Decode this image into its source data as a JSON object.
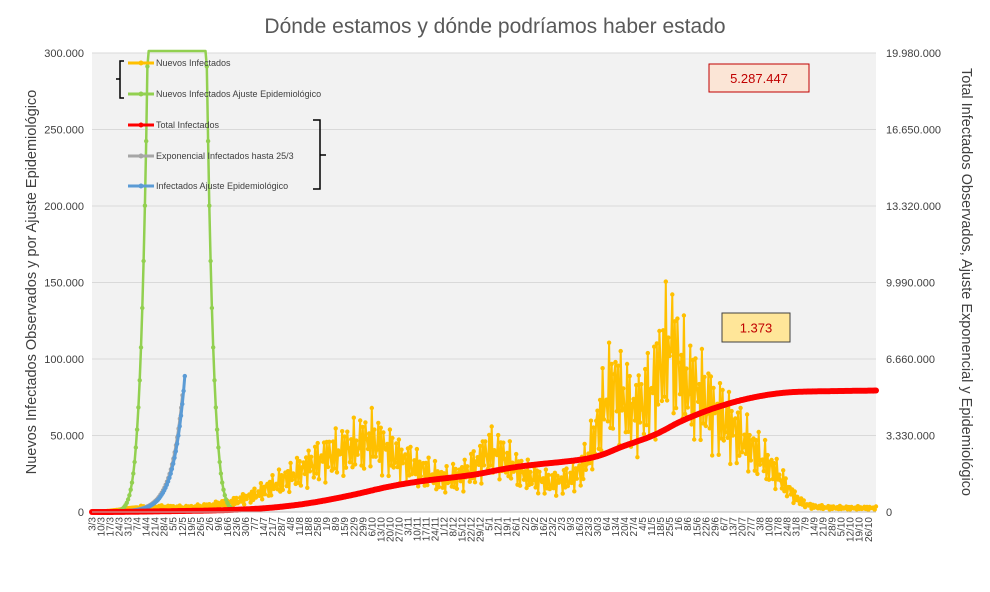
{
  "chart_data": {
    "type": "line",
    "title": "Dónde estamos y dónde podríamos haber estado",
    "ylabel": "Nuevos Infectados Observados y por Ajuste Epidemiológico",
    "y2label": "Total Infectados Observados, Ajuste Exponencial y Epidemiológico",
    "ylim": [
      0,
      300000
    ],
    "y2lim": [
      0,
      19980000
    ],
    "yticks": [
      "0",
      "50.000",
      "100.000",
      "150.000",
      "200.000",
      "250.000",
      "300.000"
    ],
    "y2ticks": [
      "0",
      "3.330.000",
      "6.660.000",
      "9.990.000",
      "13.320.000",
      "16.650.000",
      "19.980.000"
    ],
    "grid": true,
    "legend_position": "top-left",
    "x_dates": [
      "3/3",
      "10/3",
      "17/3",
      "24/3",
      "31/3",
      "7/4",
      "14/4",
      "21/4",
      "28/4",
      "5/5",
      "12/5",
      "19/5",
      "26/5",
      "2/6",
      "9/6",
      "16/6",
      "23/6",
      "30/6",
      "7/7",
      "14/7",
      "21/7",
      "28/7",
      "4/8",
      "11/8",
      "18/8",
      "25/8",
      "1/9",
      "8/9",
      "15/9",
      "22/9",
      "29/9",
      "6/10",
      "13/10",
      "20/10",
      "27/10",
      "3/11",
      "10/11",
      "17/11",
      "24/11",
      "1/12",
      "8/12",
      "15/12",
      "22/12",
      "29/12",
      "5/1",
      "12/1",
      "19/1",
      "26/1",
      "2/2",
      "9/2",
      "16/2",
      "23/2",
      "2/3",
      "9/3",
      "16/3",
      "23/3",
      "30/3",
      "6/4",
      "13/4",
      "20/4",
      "27/4",
      "4/5",
      "11/5",
      "18/5",
      "25/5",
      "1/6",
      "8/6",
      "15/6",
      "22/6",
      "29/6",
      "6/7",
      "13/7",
      "20/7",
      "27/7",
      "3/8",
      "10/8",
      "17/8",
      "24/8",
      "31/8",
      "7/9",
      "14/9",
      "21/9",
      "28/9",
      "5/10",
      "12/10",
      "19/10",
      "26/10"
    ],
    "series": [
      {
        "name": "Nuevos Infectados",
        "color": "#ffc000",
        "axis": "left",
        "weekly_values": [
          0,
          200,
          800,
          1500,
          2500,
          3000,
          2800,
          3000,
          3200,
          3000,
          2800,
          3000,
          3500,
          4000,
          5000,
          6000,
          7000,
          9000,
          11000,
          14000,
          17000,
          20000,
          23000,
          26000,
          30000,
          33000,
          36000,
          38000,
          40000,
          42000,
          45000,
          47000,
          43000,
          39000,
          35000,
          32000,
          29000,
          26000,
          23000,
          21000,
          22000,
          24000,
          28000,
          34000,
          40000,
          38000,
          33000,
          28000,
          24000,
          22000,
          20000,
          19000,
          20000,
          22000,
          26000,
          36000,
          55000,
          75000,
          82000,
          72000,
          65000,
          70000,
          78000,
          95000,
          110000,
          95000,
          82000,
          78000,
          72000,
          65000,
          60000,
          55000,
          48000,
          42000,
          36000,
          30000,
          24000,
          16000,
          9000,
          5000,
          3500,
          3000,
          2800,
          2700,
          2600,
          2600,
          2600
        ]
      },
      {
        "name": "Nuevos Infectados Ajuste Epidemiológico",
        "color": "#92d050",
        "axis": "left"
      },
      {
        "name": "Total Infectados",
        "color": "#ff0000",
        "axis": "right"
      },
      {
        "name": "Exponencial Infectados hasta 25/3",
        "color": "#a6a6a6",
        "axis": "right"
      },
      {
        "name": "Infectados Ajuste Epidemiológico",
        "color": "#5b9bd5",
        "axis": "right"
      }
    ],
    "annotations": [
      {
        "text": "5.287.447",
        "bg": "#fbe5d6",
        "border": "#c00000"
      },
      {
        "text": "1.373",
        "bg": "#ffe699",
        "border": "#404040"
      }
    ]
  }
}
